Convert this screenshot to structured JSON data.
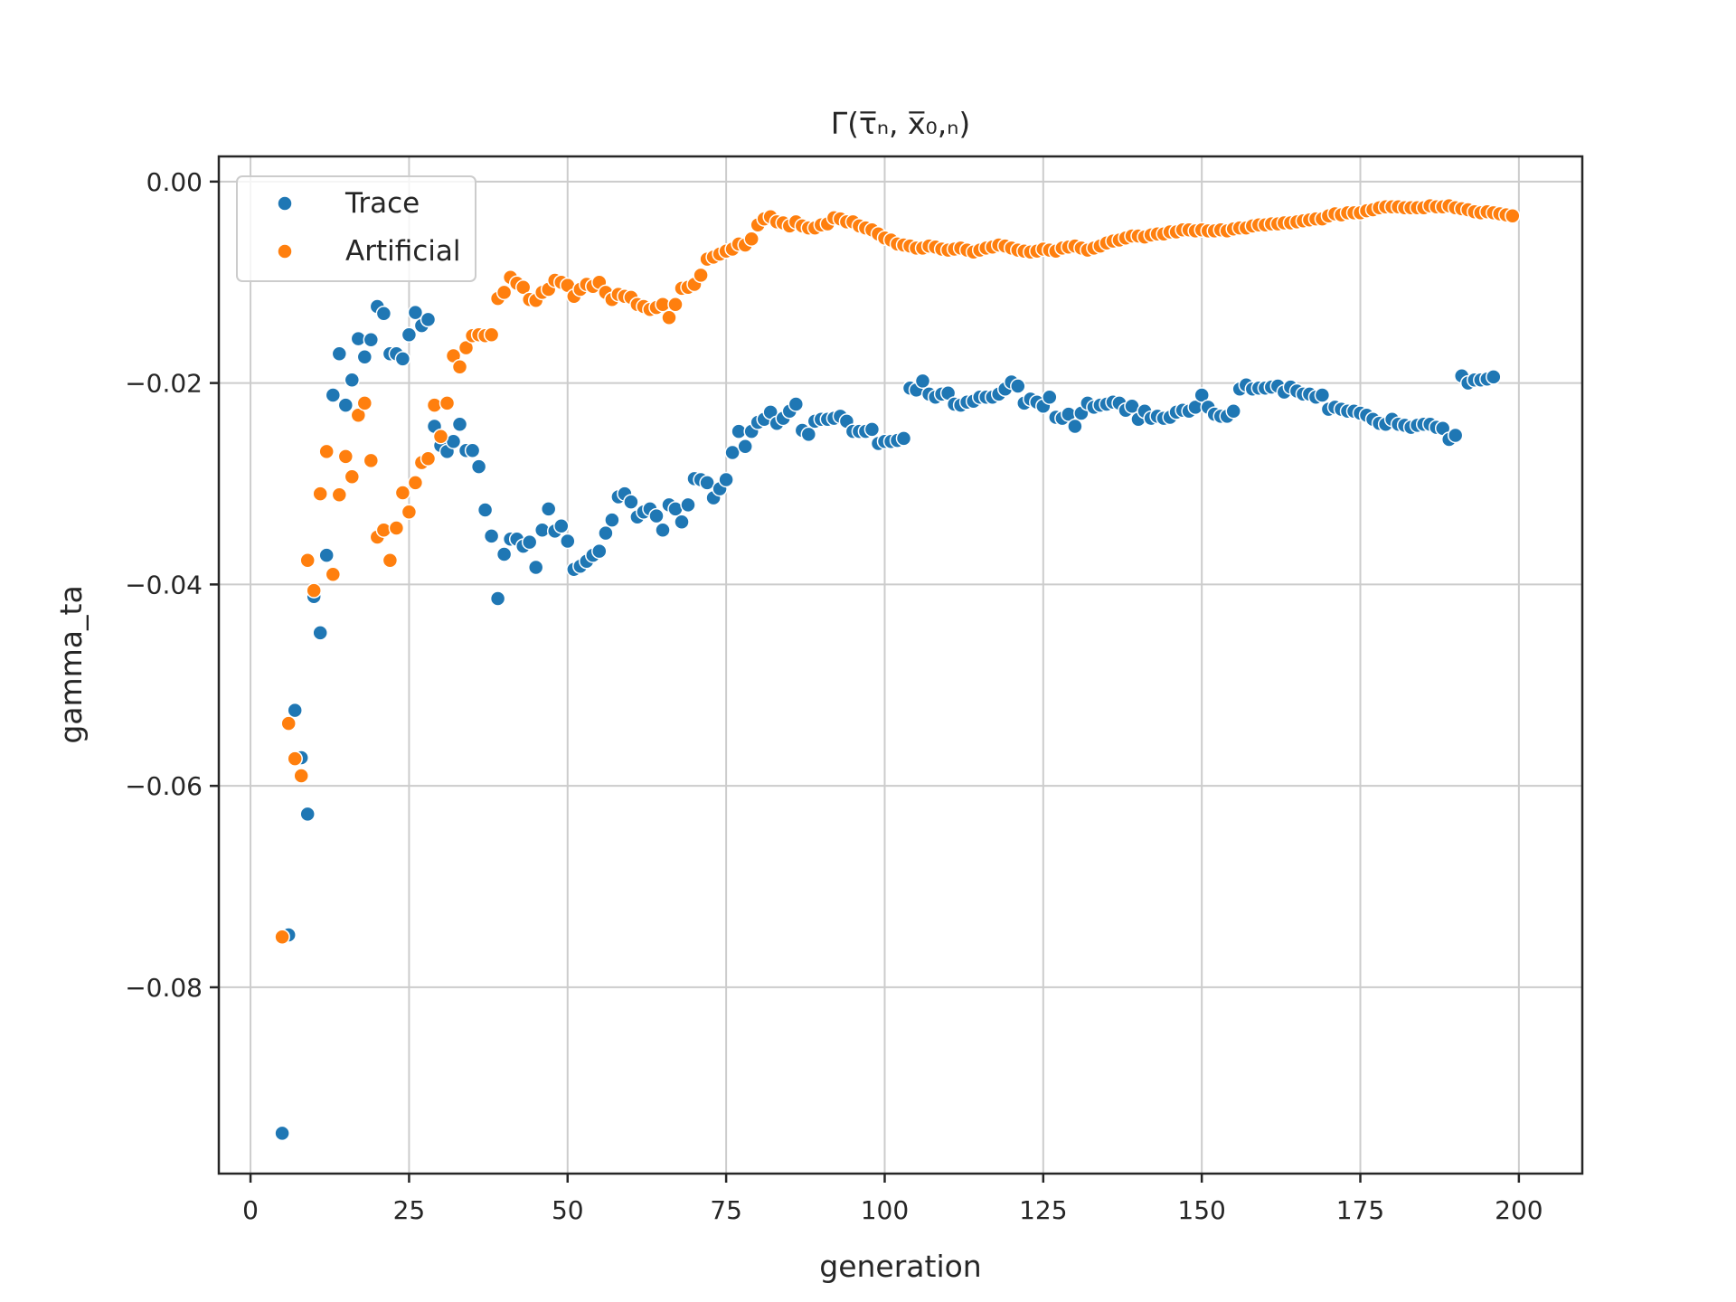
{
  "chart_data": {
    "type": "scatter",
    "title": "Γ(τ̅ₙ, x̅₀,ₙ)",
    "xlabel": "generation",
    "ylabel": "gamma_ta",
    "xlim": [
      -5,
      210
    ],
    "ylim": [
      -0.0985,
      0.0025
    ],
    "xticks": [
      0,
      25,
      50,
      75,
      100,
      125,
      150,
      175,
      200
    ],
    "xtick_labels": [
      "0",
      "25",
      "50",
      "75",
      "100",
      "125",
      "150",
      "175",
      "200"
    ],
    "yticks": [
      0.0,
      -0.02,
      -0.04,
      -0.06,
      -0.08
    ],
    "ytick_labels": [
      "0.00",
      "−0.02",
      "−0.04",
      "−0.06",
      "−0.08"
    ],
    "grid": true,
    "legend_position": "upper-left",
    "x": [
      5,
      6,
      7,
      8,
      9,
      10,
      11,
      12,
      13,
      14,
      15,
      16,
      17,
      18,
      19,
      20,
      21,
      22,
      23,
      24,
      25,
      26,
      27,
      28,
      29,
      30,
      31,
      32,
      33,
      34,
      35,
      36,
      37,
      38,
      39,
      40,
      41,
      42,
      43,
      44,
      45,
      46,
      47,
      48,
      49,
      50,
      51,
      52,
      53,
      54,
      55,
      56,
      57,
      58,
      59,
      60,
      61,
      62,
      63,
      64,
      65,
      66,
      67,
      68,
      69,
      70,
      71,
      72,
      73,
      74,
      75,
      76,
      77,
      78,
      79,
      80,
      81,
      82,
      83,
      84,
      85,
      86,
      87,
      88,
      89,
      90,
      91,
      92,
      93,
      94,
      95,
      96,
      97,
      98,
      99,
      100,
      101,
      102,
      103,
      104,
      105,
      106,
      107,
      108,
      109,
      110,
      111,
      112,
      113,
      114,
      115,
      116,
      117,
      118,
      119,
      120,
      121,
      122,
      123,
      124,
      125,
      126,
      127,
      128,
      129,
      130,
      131,
      132,
      133,
      134,
      135,
      136,
      137,
      138,
      139,
      140,
      141,
      142,
      143,
      144,
      145,
      146,
      147,
      148,
      149,
      150,
      151,
      152,
      153,
      154,
      155,
      156,
      157,
      158,
      159,
      160,
      161,
      162,
      163,
      164,
      165,
      166,
      167,
      168,
      169,
      170,
      171,
      172,
      173,
      174,
      175,
      176,
      177,
      178,
      179,
      180,
      181,
      182,
      183,
      184,
      185,
      186,
      187,
      188,
      189,
      190,
      191,
      192,
      193,
      194,
      195,
      196,
      197,
      198,
      199,
      200
    ],
    "series": [
      {
        "name": "Trace",
        "color": "#1f77b4",
        "values": [
          -0.0945,
          -0.0748,
          -0.0525,
          -0.0572,
          -0.0628,
          -0.0412,
          -0.0448,
          -0.0371,
          -0.0212,
          -0.0171,
          -0.0222,
          -0.0197,
          -0.0156,
          -0.0174,
          -0.0157,
          -0.0124,
          -0.0131,
          -0.0171,
          -0.0171,
          -0.0176,
          -0.0152,
          -0.013,
          -0.0143,
          -0.0137,
          -0.0243,
          -0.0262,
          -0.0268,
          -0.0258,
          -0.0241,
          -0.0267,
          -0.0267,
          -0.0283,
          -0.0326,
          -0.0352,
          -0.0414,
          -0.037,
          -0.0355,
          -0.0355,
          -0.0362,
          -0.0358,
          -0.0383,
          -0.0346,
          -0.0325,
          -0.0347,
          -0.0342,
          -0.0357,
          -0.0385,
          -0.0382,
          -0.0377,
          -0.0371,
          -0.0367,
          -0.0349,
          -0.0336,
          -0.0313,
          -0.031,
          -0.0318,
          -0.0333,
          -0.0328,
          -0.0325,
          -0.0332,
          -0.0346,
          -0.0321,
          -0.0325,
          -0.0338,
          -0.0321,
          -0.0295,
          -0.0296,
          -0.0299,
          -0.0314,
          -0.0305,
          -0.0296,
          -0.0269,
          -0.0248,
          -0.0263,
          -0.0248,
          -0.0239,
          -0.0236,
          -0.0229,
          -0.024,
          -0.0235,
          -0.0228,
          -0.0221,
          -0.0247,
          -0.0251,
          -0.0238,
          -0.0236,
          -0.0236,
          -0.0235,
          -0.0233,
          -0.0238,
          -0.0248,
          -0.0248,
          -0.0248,
          -0.0246,
          -0.026,
          -0.0258,
          -0.0258,
          -0.0257,
          -0.0255,
          -0.0205,
          -0.0207,
          -0.0198,
          -0.0211,
          -0.0214,
          -0.0211,
          -0.021,
          -0.0221,
          -0.0222,
          -0.0219,
          -0.0218,
          -0.0214,
          -0.0214,
          -0.0214,
          -0.0211,
          -0.0206,
          -0.0199,
          -0.0203,
          -0.022,
          -0.0216,
          -0.0219,
          -0.0223,
          -0.0214,
          -0.0234,
          -0.0235,
          -0.0231,
          -0.0243,
          -0.023,
          -0.022,
          -0.0224,
          -0.0222,
          -0.0221,
          -0.0219,
          -0.022,
          -0.0227,
          -0.0223,
          -0.0236,
          -0.0228,
          -0.0235,
          -0.0233,
          -0.0235,
          -0.0234,
          -0.0229,
          -0.0227,
          -0.0228,
          -0.0224,
          -0.0212,
          -0.0224,
          -0.0231,
          -0.0233,
          -0.0233,
          -0.0228,
          -0.0206,
          -0.0202,
          -0.0206,
          -0.0205,
          -0.0205,
          -0.0204,
          -0.0203,
          -0.0209,
          -0.0204,
          -0.0208,
          -0.0211,
          -0.0211,
          -0.0214,
          -0.0212,
          -0.0226,
          -0.0224,
          -0.0226,
          -0.0228,
          -0.0228,
          -0.023,
          -0.0232,
          -0.0236,
          -0.024,
          -0.0241,
          -0.0236,
          -0.0241,
          -0.0242,
          -0.0244,
          -0.0242,
          -0.0241,
          -0.0241,
          -0.0244,
          -0.0245,
          -0.0256,
          -0.0252,
          -0.0193,
          -0.02,
          -0.0197,
          -0.0197,
          -0.0196,
          -0.0194
        ]
      },
      {
        "name": "Artificial",
        "color": "#ff7f0e",
        "values": [
          -0.075,
          -0.0538,
          -0.0573,
          -0.059,
          -0.0376,
          -0.0406,
          -0.031,
          -0.0268,
          -0.039,
          -0.0311,
          -0.0273,
          -0.0293,
          -0.0232,
          -0.022,
          -0.0277,
          -0.0353,
          -0.0346,
          -0.0376,
          -0.0344,
          -0.0309,
          -0.0328,
          -0.0299,
          -0.0279,
          -0.0275,
          -0.0222,
          -0.0253,
          -0.022,
          -0.0173,
          -0.0184,
          -0.0165,
          -0.0153,
          -0.0152,
          -0.0153,
          -0.0152,
          -0.0116,
          -0.011,
          -0.0095,
          -0.0101,
          -0.0105,
          -0.0117,
          -0.0118,
          -0.011,
          -0.0107,
          -0.0098,
          -0.01,
          -0.0103,
          -0.0114,
          -0.0107,
          -0.0102,
          -0.0104,
          -0.01,
          -0.011,
          -0.0117,
          -0.0112,
          -0.0114,
          -0.0115,
          -0.0122,
          -0.0124,
          -0.0127,
          -0.0125,
          -0.0122,
          -0.0135,
          -0.0122,
          -0.0106,
          -0.0105,
          -0.0102,
          -0.0093,
          -0.0077,
          -0.0075,
          -0.0072,
          -0.0069,
          -0.0067,
          -0.0062,
          -0.0063,
          -0.0057,
          -0.0043,
          -0.0037,
          -0.0035,
          -0.004,
          -0.0041,
          -0.0044,
          -0.004,
          -0.0044,
          -0.0046,
          -0.0046,
          -0.0043,
          -0.0042,
          -0.0036,
          -0.0037,
          -0.004,
          -0.004,
          -0.0044,
          -0.0046,
          -0.0048,
          -0.0052,
          -0.0056,
          -0.0058,
          -0.0062,
          -0.0063,
          -0.0064,
          -0.0066,
          -0.0066,
          -0.0064,
          -0.0065,
          -0.0067,
          -0.0068,
          -0.0067,
          -0.0066,
          -0.0068,
          -0.007,
          -0.0068,
          -0.0066,
          -0.0065,
          -0.0063,
          -0.0064,
          -0.0066,
          -0.0068,
          -0.0069,
          -0.007,
          -0.0069,
          -0.0067,
          -0.0068,
          -0.0069,
          -0.0066,
          -0.0065,
          -0.0064,
          -0.0066,
          -0.0068,
          -0.0066,
          -0.0064,
          -0.0061,
          -0.0059,
          -0.0058,
          -0.0056,
          -0.0054,
          -0.0054,
          -0.0055,
          -0.0053,
          -0.0052,
          -0.0052,
          -0.005,
          -0.005,
          -0.0048,
          -0.0048,
          -0.0049,
          -0.0048,
          -0.0049,
          -0.0049,
          -0.0048,
          -0.0049,
          -0.0047,
          -0.0046,
          -0.0046,
          -0.0044,
          -0.0043,
          -0.0043,
          -0.0042,
          -0.0042,
          -0.0041,
          -0.0041,
          -0.004,
          -0.0039,
          -0.0038,
          -0.0037,
          -0.0037,
          -0.0034,
          -0.0032,
          -0.0033,
          -0.0031,
          -0.0031,
          -0.0031,
          -0.0029,
          -0.0028,
          -0.0026,
          -0.0025,
          -0.0025,
          -0.0025,
          -0.0026,
          -0.0026,
          -0.0026,
          -0.0026,
          -0.0024,
          -0.0025,
          -0.0025,
          -0.0024,
          -0.0026,
          -0.0027,
          -0.0028,
          -0.003,
          -0.0031,
          -0.003,
          -0.0031,
          -0.0032,
          -0.0033,
          -0.0034
        ]
      }
    ]
  }
}
